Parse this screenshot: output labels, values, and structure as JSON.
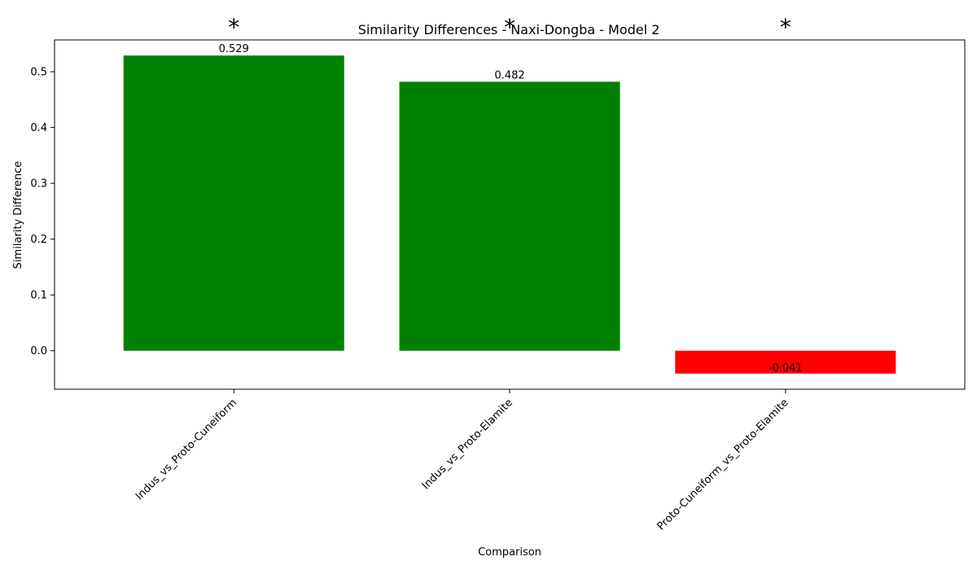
{
  "chart_data": {
    "type": "bar",
    "title": "Similarity Differences - Naxi-Dongba - Model 2",
    "xlabel": "Comparison",
    "ylabel": "Similarity Difference",
    "categories": [
      "Indus_vs_Proto-Cuneiform",
      "Indus_vs_Proto-Elamite",
      "Proto-Cuneiform_vs_Proto-Elamite"
    ],
    "values": [
      0.529,
      0.482,
      -0.041
    ],
    "value_labels": [
      "0.529",
      "0.482",
      "-0.041"
    ],
    "significance_markers": [
      "*",
      "*",
      "*"
    ],
    "bar_colors": [
      "#008000",
      "#008000",
      "#ff0000"
    ],
    "ylim": [
      -0.069,
      0.557
    ],
    "yticks": [
      0.0,
      0.1,
      0.2,
      0.3,
      0.4,
      0.5
    ],
    "ytick_labels": [
      "0.0",
      "0.1",
      "0.2",
      "0.3",
      "0.4",
      "0.5"
    ],
    "grid": false,
    "legend": "none"
  }
}
